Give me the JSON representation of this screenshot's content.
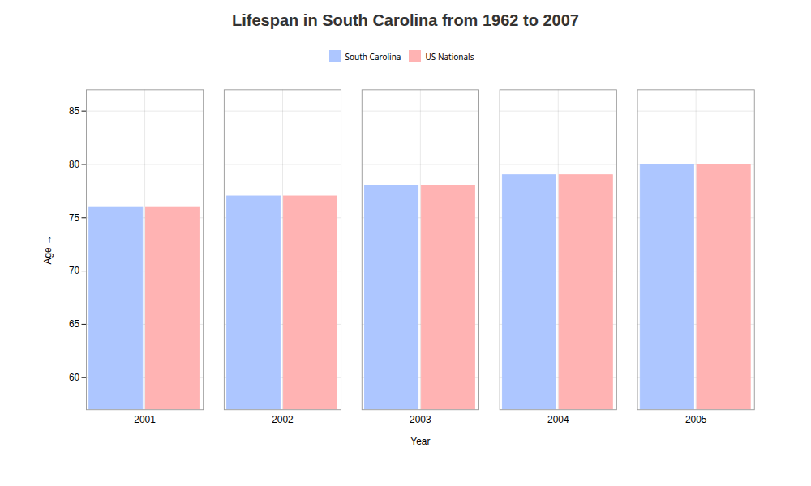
{
  "chart_data": {
    "type": "bar",
    "title": "Lifespan in South Carolina from 1962 to 2007",
    "xlabel": "Year",
    "ylabel": "Age",
    "categories": [
      2001,
      2002,
      2003,
      2004,
      2005
    ],
    "series": [
      {
        "name": "South Carolina",
        "color": "#adc6ff",
        "values": [
          76,
          77,
          78,
          79,
          80
        ]
      },
      {
        "name": "US Nationals",
        "color": "#ffb3b3",
        "values": [
          76,
          77,
          78,
          79,
          80
        ]
      }
    ],
    "ylim": [
      57,
      87
    ],
    "yticks": [
      60,
      65,
      70,
      75,
      80,
      85
    ],
    "grid": true,
    "legend": "top"
  }
}
